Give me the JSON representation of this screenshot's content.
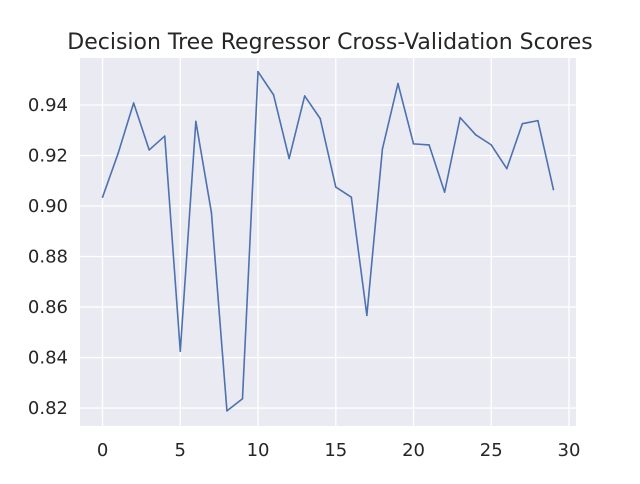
{
  "chart_data": {
    "type": "line",
    "title": "Decision Tree Regressor Cross-Validation Scores",
    "xlabel": "",
    "ylabel": "",
    "xlim": [
      -1.45,
      30.45
    ],
    "ylim": [
      0.8129,
      0.9586
    ],
    "x_ticks": [
      0,
      5,
      10,
      15,
      20,
      25,
      30
    ],
    "x_tick_labels": [
      "0",
      "5",
      "10",
      "15",
      "20",
      "25",
      "30"
    ],
    "y_ticks": [
      0.82,
      0.84,
      0.86,
      0.88,
      0.9,
      0.92,
      0.94
    ],
    "y_tick_labels": [
      "0.82",
      "0.84",
      "0.86",
      "0.88",
      "0.90",
      "0.92",
      "0.94"
    ],
    "grid": true,
    "legend": "none",
    "style": {
      "background_color": "#eaeaf2",
      "grid_color": "#ffffff",
      "line_color": "#4c72b0"
    },
    "series": [
      {
        "x": [
          0,
          1,
          2,
          3,
          4,
          5,
          6,
          7,
          8,
          9,
          10,
          11,
          12,
          13,
          14,
          15,
          16,
          17,
          18,
          19,
          20,
          21,
          22,
          23,
          24,
          25,
          26,
          27,
          28,
          29
        ],
        "values": [
          0.9035,
          0.9208,
          0.9408,
          0.9222,
          0.9277,
          0.8425,
          0.9335,
          0.8975,
          0.8189,
          0.8237,
          0.9532,
          0.944,
          0.9188,
          0.9436,
          0.9346,
          0.9075,
          0.9035,
          0.8567,
          0.9226,
          0.9485,
          0.9246,
          0.9242,
          0.9055,
          0.935,
          0.9282,
          0.9242,
          0.9148,
          0.9326,
          0.9338,
          0.9065
        ]
      }
    ]
  }
}
